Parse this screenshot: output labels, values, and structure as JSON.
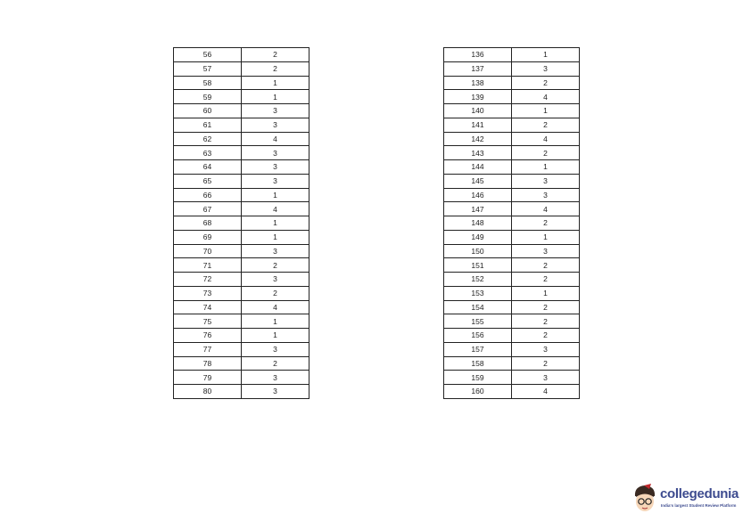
{
  "tables": [
    {
      "rows": [
        [
          "56",
          "2"
        ],
        [
          "57",
          "2"
        ],
        [
          "58",
          "1"
        ],
        [
          "59",
          "1"
        ],
        [
          "60",
          "3"
        ],
        [
          "61",
          "3"
        ],
        [
          "62",
          "4"
        ],
        [
          "63",
          "3"
        ],
        [
          "64",
          "3"
        ],
        [
          "65",
          "3"
        ],
        [
          "66",
          "1"
        ],
        [
          "67",
          "4"
        ],
        [
          "68",
          "1"
        ],
        [
          "69",
          "1"
        ],
        [
          "70",
          "3"
        ],
        [
          "71",
          "2"
        ],
        [
          "72",
          "3"
        ],
        [
          "73",
          "2"
        ],
        [
          "74",
          "4"
        ],
        [
          "75",
          "1"
        ],
        [
          "76",
          "1"
        ],
        [
          "77",
          "3"
        ],
        [
          "78",
          "2"
        ],
        [
          "79",
          "3"
        ],
        [
          "80",
          "3"
        ]
      ]
    },
    {
      "rows": [
        [
          "136",
          "1"
        ],
        [
          "137",
          "3"
        ],
        [
          "138",
          "2"
        ],
        [
          "139",
          "4"
        ],
        [
          "140",
          "1"
        ],
        [
          "141",
          "2"
        ],
        [
          "142",
          "4"
        ],
        [
          "143",
          "2"
        ],
        [
          "144",
          "1"
        ],
        [
          "145",
          "3"
        ],
        [
          "146",
          "3"
        ],
        [
          "147",
          "4"
        ],
        [
          "148",
          "2"
        ],
        [
          "149",
          "1"
        ],
        [
          "150",
          "3"
        ],
        [
          "151",
          "2"
        ],
        [
          "152",
          "2"
        ],
        [
          "153",
          "1"
        ],
        [
          "154",
          "2"
        ],
        [
          "155",
          "2"
        ],
        [
          "156",
          "2"
        ],
        [
          "157",
          "3"
        ],
        [
          "158",
          "2"
        ],
        [
          "159",
          "3"
        ],
        [
          "160",
          "4"
        ]
      ]
    }
  ],
  "logo": {
    "name": "collegedunia",
    "tagline": "India's largest Student Review Platform",
    "brand_color": "#3d4b8f"
  }
}
